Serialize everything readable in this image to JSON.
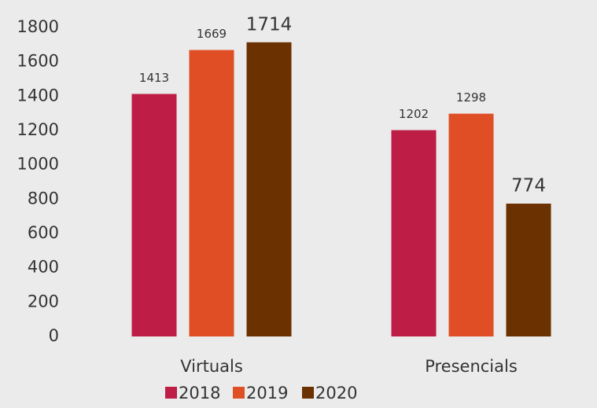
{
  "chart_data": {
    "type": "bar",
    "categories": [
      "Virtuals",
      "Presencials"
    ],
    "series": [
      {
        "name": "2018",
        "color": "#be1e45",
        "values": [
          1413,
          1202
        ]
      },
      {
        "name": "2019",
        "color": "#e04e25",
        "values": [
          1669,
          1298
        ]
      },
      {
        "name": "2020",
        "color": "#6b3100",
        "values": [
          1714,
          774
        ]
      }
    ],
    "ylim": [
      0,
      1800
    ],
    "yticks": [
      0,
      200,
      400,
      600,
      800,
      1000,
      1200,
      1400,
      1600,
      1800
    ],
    "grid": false,
    "legend": "bottom"
  }
}
